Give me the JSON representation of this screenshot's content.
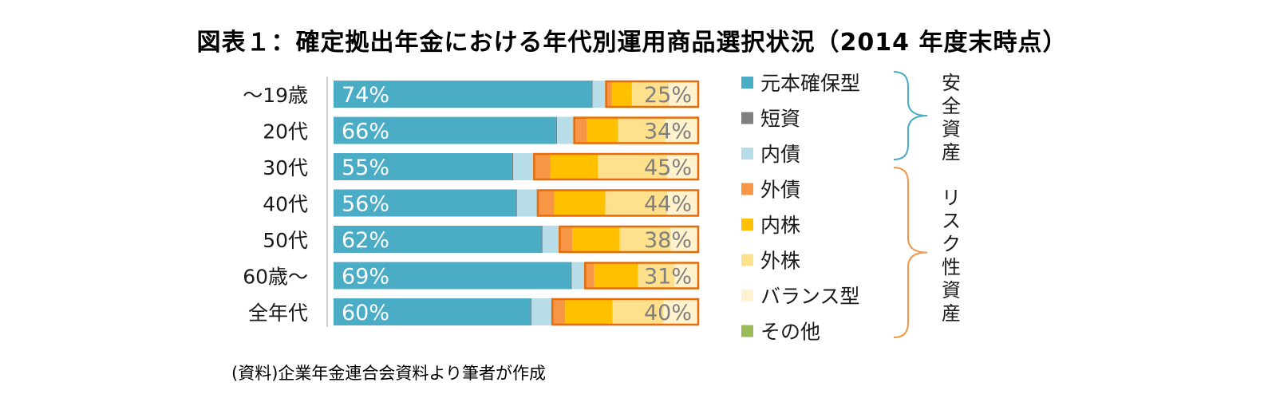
{
  "title": "図表１：確定拠出年金における年代別運用商品選択状況（2014 年度末時点）",
  "source": "(資料)企業年金連合会資料より筆者が作成",
  "colors": {
    "元本確保型": "#4bacc6",
    "短資": "#7f7f7f",
    "内債": "#b7dde8",
    "外債": "#f79646",
    "内株": "#ffc000",
    "外株": "#ffe08c",
    "バランス型": "#fff2cc",
    "その他": "#9bbb59",
    "safe_bracket": "#4bacc6",
    "risk_bracket": "#f79646",
    "risk_outline": "#e46c0a"
  },
  "chart_data": {
    "type": "bar",
    "orientation": "horizontal",
    "stacked": true,
    "normalized": true,
    "categories": [
      "～19歳",
      "20代",
      "30代",
      "40代",
      "50代",
      "60歳～",
      "全年代"
    ],
    "series": [
      {
        "name": "元本確保型",
        "values": [
          70,
          61,
          49,
          50,
          57,
          65,
          54
        ]
      },
      {
        "name": "短資",
        "values": [
          0.3,
          0.3,
          0.3,
          0.3,
          0.3,
          0.3,
          0.3
        ]
      },
      {
        "name": "内債",
        "values": [
          3.7,
          4.7,
          5.7,
          5.7,
          4.7,
          3.7,
          5.7
        ]
      },
      {
        "name": "外債",
        "values": [
          1.5,
          3.5,
          4.5,
          4.5,
          3.5,
          2.5,
          3.5
        ]
      },
      {
        "name": "内株",
        "values": [
          5.5,
          8.5,
          13,
          14,
          13,
          12,
          13
        ]
      },
      {
        "name": "外株",
        "values": [
          10,
          13,
          19,
          17,
          14,
          10,
          14
        ]
      },
      {
        "name": "バランス型",
        "values": [
          8,
          9,
          8.3,
          8.5,
          7.5,
          6.5,
          9.5
        ]
      },
      {
        "name": "その他",
        "values": [
          0,
          0,
          0.2,
          0,
          0,
          0,
          0
        ]
      }
    ],
    "safe_share_labels": [
      "74%",
      "66%",
      "55%",
      "56%",
      "62%",
      "69%",
      "60%"
    ],
    "risk_share_labels": [
      "25%",
      "34%",
      "45%",
      "44%",
      "38%",
      "31%",
      "40%"
    ],
    "legend": [
      "元本確保型",
      "短資",
      "内債",
      "外債",
      "内株",
      "外株",
      "バランス型",
      "その他"
    ],
    "legend_position": "right",
    "groups": [
      {
        "label": "安全資産",
        "members": [
          "元本確保型",
          "短資",
          "内債"
        ]
      },
      {
        "label": "リスク性資産",
        "members": [
          "外債",
          "内株",
          "外株",
          "バランス型",
          "その他"
        ]
      }
    ],
    "grid": false,
    "xlim": [
      0,
      100
    ]
  }
}
